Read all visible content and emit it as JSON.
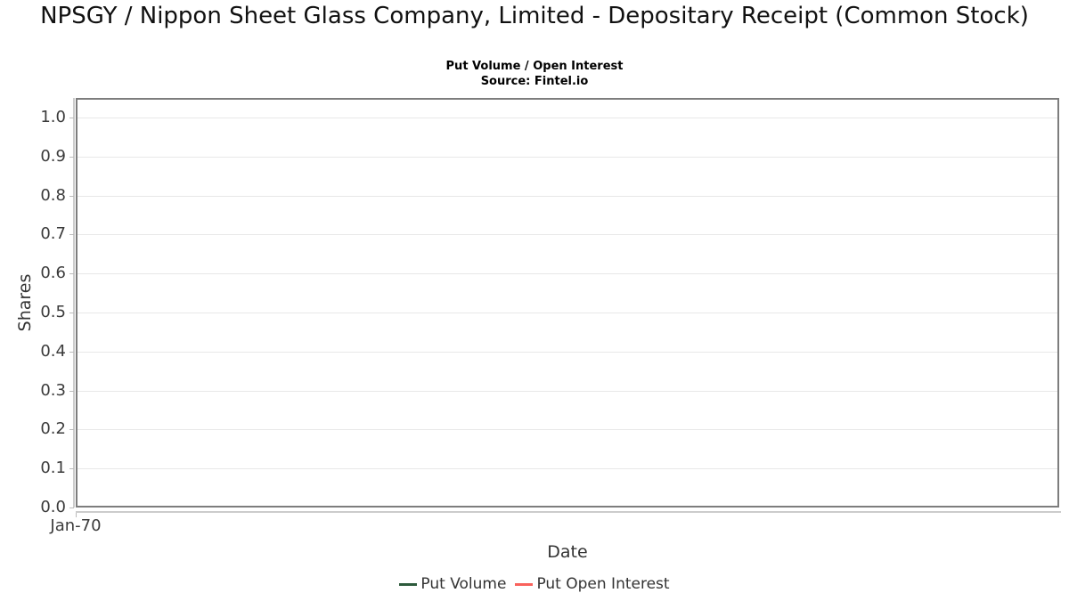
{
  "header": {
    "title": "NPSGY / Nippon Sheet Glass Company, Limited - Depositary Receipt (Common Stock)",
    "subtitle": "Put Volume / Open Interest",
    "source": "Source: Fintel.io"
  },
  "chart_data": {
    "type": "line",
    "title": "NPSGY / Nippon Sheet Glass Company, Limited - Depositary Receipt (Common Stock)",
    "subtitle": "Put Volume / Open Interest",
    "source": "Source: Fintel.io",
    "xlabel": "Date",
    "ylabel": "Shares",
    "xticks": [
      "Jan-70"
    ],
    "yticks": [
      "0.0",
      "0.1",
      "0.2",
      "0.3",
      "0.4",
      "0.5",
      "0.6",
      "0.7",
      "0.8",
      "0.9",
      "1.0"
    ],
    "ylim": [
      0,
      1.05
    ],
    "grid": true,
    "legend_position": "bottom",
    "series": [
      {
        "name": "Put Volume",
        "color": "#2d5a3c",
        "x": [],
        "values": []
      },
      {
        "name": "Put Open Interest",
        "color": "#f9625c",
        "x": [],
        "values": []
      }
    ],
    "colors": {
      "plot_border": "#7d7d7d",
      "gridline": "#e8e8e8",
      "axis_line": "#cccccc"
    }
  }
}
